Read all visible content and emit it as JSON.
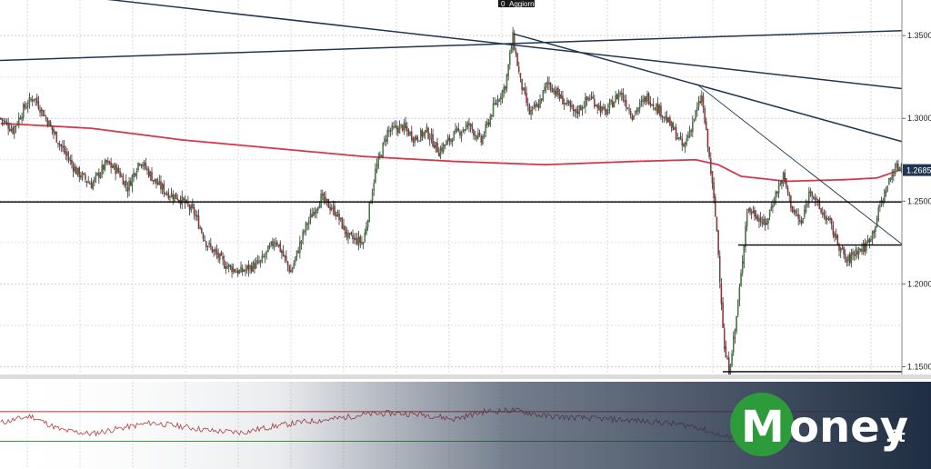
{
  "top_tag": {
    "number": "0",
    "label": "Aggiorn"
  },
  "logo": {
    "brand": "oney",
    "initial": "M",
    "suffix": ".it",
    "brand_color": "#2e9b3a"
  },
  "colors": {
    "up": "#3f9a37",
    "down": "#c0262e",
    "ma": "#d23a4a",
    "trend": "#1f3550",
    "rsi_upper": "#c0262e",
    "rsi_lower": "#3f9a37"
  },
  "chart_data": {
    "type": "candlestick",
    "ylim": [
      1.1453,
      1.3715
    ],
    "y_ticks": [
      {
        "value": 1.35,
        "label": "1.3500"
      },
      {
        "value": 1.3,
        "label": "1.3000"
      },
      {
        "value": 1.25,
        "label": "1.2500"
      },
      {
        "value": 1.2,
        "label": "1.2000"
      },
      {
        "value": 1.15,
        "label": "1.1500"
      }
    ],
    "last_price": {
      "value": 1.2685,
      "label": "1.2685"
    },
    "horizontal_levels": [
      1.2495,
      1.2235,
      1.147
    ],
    "close_anchors": [
      [
        0,
        1.3
      ],
      [
        8,
        1.293
      ],
      [
        16,
        1.307
      ],
      [
        22,
        1.313
      ],
      [
        30,
        1.3
      ],
      [
        40,
        1.283
      ],
      [
        50,
        1.268
      ],
      [
        60,
        1.26
      ],
      [
        70,
        1.273
      ],
      [
        78,
        1.268
      ],
      [
        84,
        1.258
      ],
      [
        92,
        1.275
      ],
      [
        102,
        1.262
      ],
      [
        110,
        1.255
      ],
      [
        118,
        1.252
      ],
      [
        128,
        1.243
      ],
      [
        136,
        1.225
      ],
      [
        148,
        1.212
      ],
      [
        158,
        1.207
      ],
      [
        172,
        1.213
      ],
      [
        182,
        1.227
      ],
      [
        192,
        1.207
      ],
      [
        202,
        1.235
      ],
      [
        212,
        1.252
      ],
      [
        222,
        1.243
      ],
      [
        230,
        1.228
      ],
      [
        240,
        1.225
      ],
      [
        248,
        1.268
      ],
      [
        256,
        1.292
      ],
      [
        266,
        1.295
      ],
      [
        274,
        1.288
      ],
      [
        282,
        1.292
      ],
      [
        290,
        1.28
      ],
      [
        300,
        1.29
      ],
      [
        310,
        1.296
      ],
      [
        318,
        1.286
      ],
      [
        326,
        1.306
      ],
      [
        334,
        1.32
      ],
      [
        339,
        1.349
      ],
      [
        344,
        1.322
      ],
      [
        350,
        1.303
      ],
      [
        356,
        1.308
      ],
      [
        362,
        1.322
      ],
      [
        370,
        1.313
      ],
      [
        380,
        1.303
      ],
      [
        390,
        1.313
      ],
      [
        400,
        1.303
      ],
      [
        410,
        1.316
      ],
      [
        418,
        1.302
      ],
      [
        428,
        1.313
      ],
      [
        438,
        1.303
      ],
      [
        446,
        1.292
      ],
      [
        452,
        1.282
      ],
      [
        460,
        1.303
      ],
      [
        464,
        1.313
      ],
      [
        470,
        1.268
      ],
      [
        474,
        1.232
      ],
      [
        477,
        1.19
      ],
      [
        479,
        1.16
      ],
      [
        482,
        1.148
      ],
      [
        486,
        1.172
      ],
      [
        490,
        1.205
      ],
      [
        494,
        1.245
      ],
      [
        500,
        1.242
      ],
      [
        506,
        1.235
      ],
      [
        512,
        1.252
      ],
      [
        518,
        1.265
      ],
      [
        524,
        1.245
      ],
      [
        530,
        1.236
      ],
      [
        536,
        1.258
      ],
      [
        542,
        1.245
      ],
      [
        548,
        1.238
      ],
      [
        554,
        1.225
      ],
      [
        560,
        1.213
      ],
      [
        566,
        1.22
      ],
      [
        572,
        1.222
      ],
      [
        578,
        1.233
      ],
      [
        582,
        1.247
      ],
      [
        588,
        1.262
      ],
      [
        592,
        1.27
      ],
      [
        596,
        1.271
      ]
    ],
    "ma_anchors": [
      [
        0,
        1.297
      ],
      [
        60,
        1.294
      ],
      [
        120,
        1.287
      ],
      [
        180,
        1.282
      ],
      [
        240,
        1.277
      ],
      [
        300,
        1.274
      ],
      [
        360,
        1.272
      ],
      [
        420,
        1.274
      ],
      [
        460,
        1.275
      ],
      [
        475,
        1.272
      ],
      [
        490,
        1.265
      ],
      [
        520,
        1.262
      ],
      [
        560,
        1.263
      ],
      [
        580,
        1.264
      ],
      [
        596,
        1.269
      ]
    ],
    "rsi_levels": [
      70,
      30
    ],
    "rsi_anchors": [
      [
        0,
        55
      ],
      [
        20,
        64
      ],
      [
        40,
        45
      ],
      [
        60,
        40
      ],
      [
        80,
        48
      ],
      [
        100,
        55
      ],
      [
        120,
        50
      ],
      [
        140,
        44
      ],
      [
        160,
        42
      ],
      [
        180,
        50
      ],
      [
        200,
        56
      ],
      [
        220,
        60
      ],
      [
        240,
        66
      ],
      [
        260,
        68
      ],
      [
        280,
        66
      ],
      [
        300,
        60
      ],
      [
        320,
        70
      ],
      [
        340,
        72
      ],
      [
        360,
        64
      ],
      [
        380,
        62
      ],
      [
        400,
        60
      ],
      [
        420,
        58
      ],
      [
        440,
        55
      ],
      [
        460,
        50
      ],
      [
        480,
        35
      ],
      [
        500,
        55
      ],
      [
        520,
        60
      ],
      [
        540,
        55
      ],
      [
        560,
        48
      ],
      [
        580,
        55
      ],
      [
        596,
        62
      ]
    ]
  }
}
